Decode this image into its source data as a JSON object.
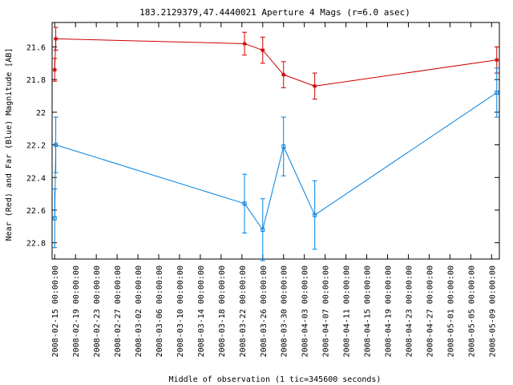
{
  "chart_data": {
    "type": "line",
    "title": "183.2129379,47.4440021   Aperture 4 Mags (r=6.0 asec)",
    "xlabel": "Middle of observation (1 tic=345600 seconds)",
    "ylabel": "Near (Red) and Far (Blue) Magnitude [AB]",
    "y_inverted": true,
    "ylim": [
      22.9,
      21.45
    ],
    "y_ticks": [
      21.6,
      21.8,
      22,
      22.2,
      22.4,
      22.6,
      22.8
    ],
    "y_tick_labels": [
      "21.6",
      "21.8",
      "22",
      "22.2",
      "22.4",
      "22.6",
      "22.8"
    ],
    "xlim": [
      "2008-02-14T12:00:00",
      "2008-05-10T12:00:00"
    ],
    "x_tick_labels": [
      "2008-02-15 00:00:00",
      "2008-02-19 00:00:00",
      "2008-02-23 00:00:00",
      "2008-02-27 00:00:00",
      "2008-03-02 00:00:00",
      "2008-03-06 00:00:00",
      "2008-03-10 00:00:00",
      "2008-03-14 00:00:00",
      "2008-03-18 00:00:00",
      "2008-03-22 00:00:00",
      "2008-03-26 00:00:00",
      "2008-03-30 00:00:00",
      "2008-04-03 00:00:00",
      "2008-04-07 00:00:00",
      "2008-04-11 00:00:00",
      "2008-04-15 00:00:00",
      "2008-04-19 00:00:00",
      "2008-04-23 00:00:00",
      "2008-04-27 00:00:00",
      "2008-05-01 00:00:00",
      "2008-05-05 00:00:00",
      "2008-05-09 00:00:00"
    ],
    "grid": false,
    "series": [
      {
        "color": "#cc0000",
        "marker": "star",
        "connected": [
          false,
          true,
          true,
          true,
          true,
          true,
          true
        ],
        "points": [
          {
            "x": "2008-02-15T00:00:00",
            "y": 21.74,
            "err": 0.07
          },
          {
            "x": "2008-02-15T05:00:00",
            "y": 21.55,
            "err": 0.07
          },
          {
            "x": "2008-03-22T12:00:00",
            "y": 21.58,
            "err": 0.07
          },
          {
            "x": "2008-03-26T00:00:00",
            "y": 21.62,
            "err": 0.08
          },
          {
            "x": "2008-03-30T00:00:00",
            "y": 21.77,
            "err": 0.08
          },
          {
            "x": "2008-04-05T00:00:00",
            "y": 21.84,
            "err": 0.08
          },
          {
            "x": "2008-05-10T00:00:00",
            "y": 21.68,
            "err": 0.08
          }
        ]
      },
      {
        "color": "#0080e0",
        "marker": "square",
        "connected": [
          false,
          true,
          true,
          true,
          true,
          true,
          true
        ],
        "points": [
          {
            "x": "2008-02-15T00:00:00",
            "y": 22.65,
            "err": 0.18
          },
          {
            "x": "2008-02-15T05:00:00",
            "y": 22.2,
            "err": 0.17
          },
          {
            "x": "2008-03-22T12:00:00",
            "y": 22.56,
            "err": 0.18
          },
          {
            "x": "2008-03-26T00:00:00",
            "y": 22.72,
            "err": 0.19
          },
          {
            "x": "2008-03-30T00:00:00",
            "y": 22.21,
            "err": 0.18
          },
          {
            "x": "2008-04-05T00:00:00",
            "y": 22.63,
            "err": 0.21
          },
          {
            "x": "2008-05-10T00:00:00",
            "y": 21.88,
            "err": 0.15
          }
        ]
      }
    ]
  }
}
